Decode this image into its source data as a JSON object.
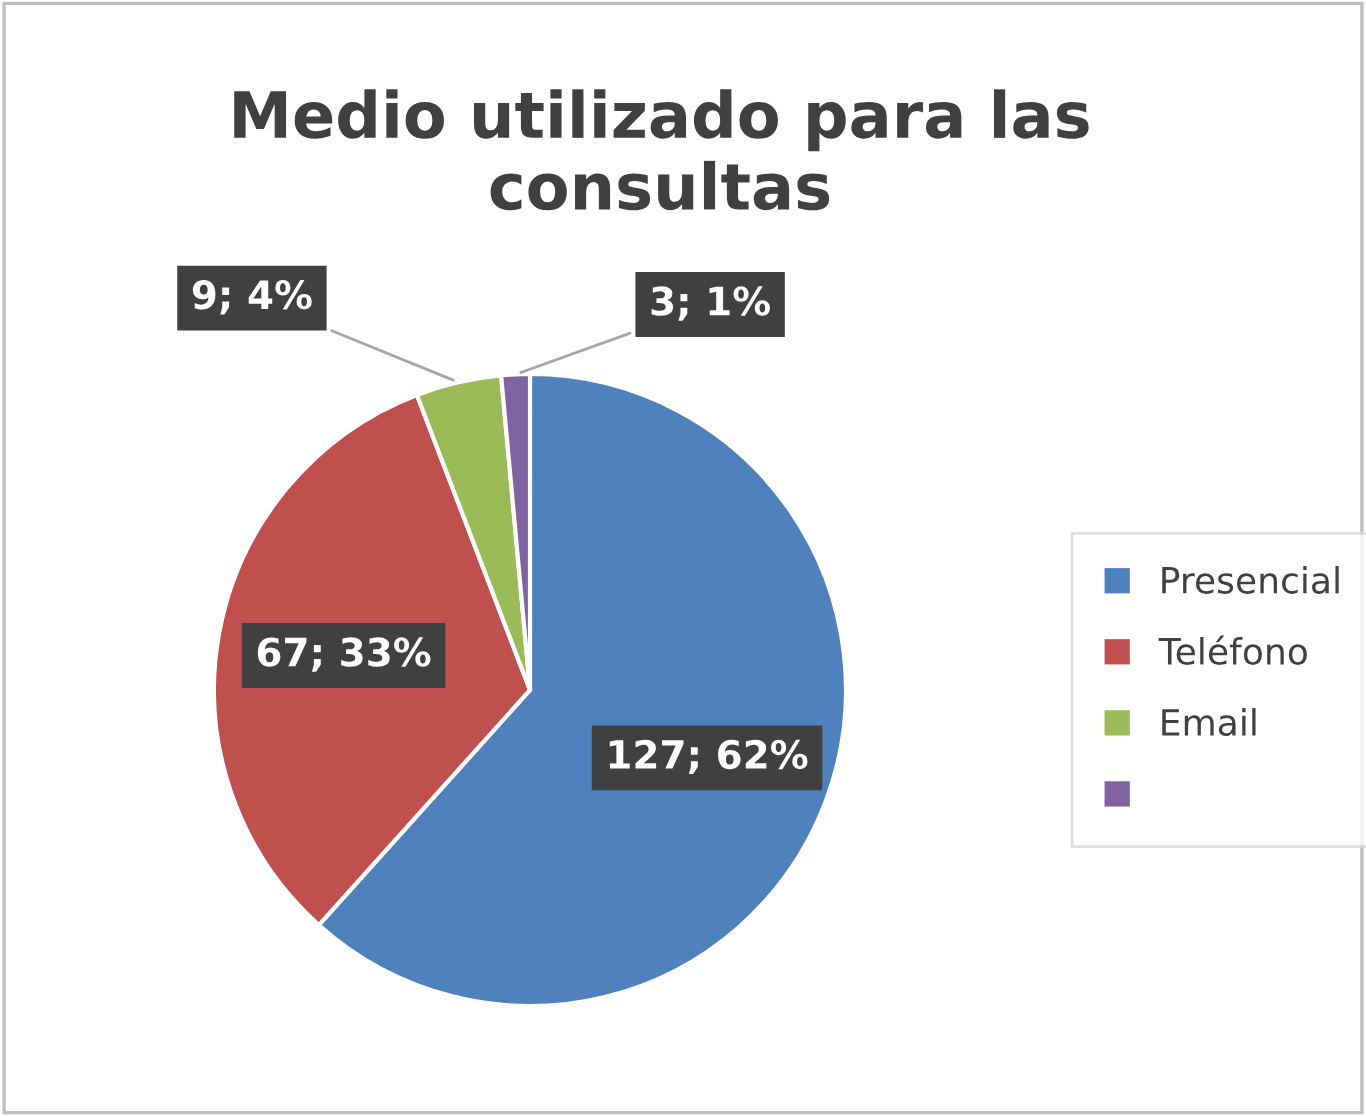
{
  "chart_data": {
    "type": "pie",
    "title": "Medio utilizado para las consultas",
    "categories": [
      "Presencial",
      "Teléfono",
      "Email",
      null
    ],
    "values": [
      127,
      67,
      9,
      3
    ],
    "value_labels": [
      "127; 62%",
      "67; 33%",
      "9; 4%",
      "3; 1%"
    ],
    "colors": [
      "#4f81bd",
      "#c0504d",
      "#9bbb59",
      "#8064a2"
    ],
    "legend": "right"
  }
}
